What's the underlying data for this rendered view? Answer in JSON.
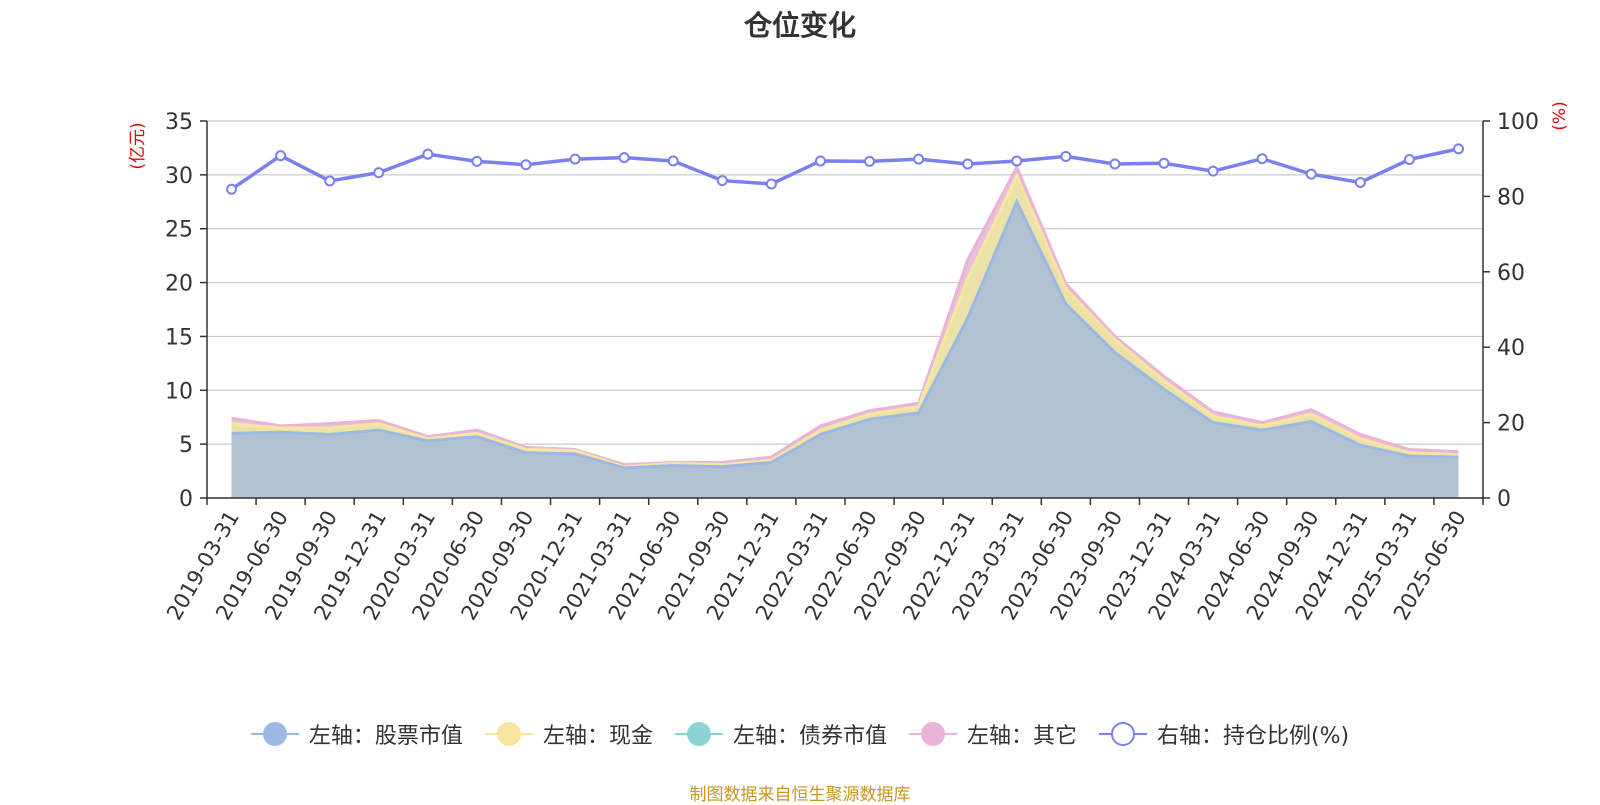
{
  "title": "仓位变化",
  "source": "制图数据来自恒生聚源数据库",
  "chart_data": {
    "type": "area",
    "title": "仓位变化",
    "categories": [
      "2019-03-31",
      "2019-06-30",
      "2019-09-30",
      "2019-12-31",
      "2020-03-31",
      "2020-06-30",
      "2020-09-30",
      "2020-12-31",
      "2021-03-31",
      "2021-06-30",
      "2021-09-30",
      "2021-12-31",
      "2022-03-31",
      "2022-06-30",
      "2022-09-30",
      "2022-12-31",
      "2023-03-31",
      "2023-06-30",
      "2023-09-30",
      "2023-12-31",
      "2024-03-31",
      "2024-06-30",
      "2024-09-30",
      "2024-12-31",
      "2025-03-31",
      "2025-06-30"
    ],
    "left_axis": {
      "label": "(亿元)",
      "min": 0,
      "max": 35,
      "ticks": [
        0,
        5,
        10,
        15,
        20,
        25,
        30,
        35
      ],
      "color": "#e00000"
    },
    "right_axis": {
      "label": "(%)",
      "min": 0,
      "max": 100,
      "ticks": [
        0,
        20,
        40,
        60,
        80,
        100
      ],
      "color": "#e00000"
    },
    "grid": true,
    "legend_position": "bottom",
    "series": [
      {
        "name": "左轴：股票市值",
        "axis": "left",
        "stacked": true,
        "color": "#9db8e2",
        "values": [
          6.0,
          6.1,
          5.9,
          6.3,
          5.3,
          5.7,
          4.2,
          4.1,
          2.8,
          3.0,
          2.9,
          3.3,
          5.9,
          7.3,
          7.9,
          16.7,
          27.5,
          18.0,
          13.5,
          10.1,
          7.0,
          6.3,
          7.1,
          4.9,
          3.9,
          3.8
        ]
      },
      {
        "name": "左轴：现金",
        "axis": "left",
        "stacked": true,
        "color": "#f8e5a0",
        "values": [
          0.9,
          0.4,
          0.6,
          0.6,
          0.2,
          0.3,
          0.3,
          0.3,
          0.1,
          0.2,
          0.2,
          0.2,
          0.4,
          0.5,
          0.6,
          3.7,
          2.4,
          1.4,
          1.2,
          0.8,
          0.6,
          0.4,
          0.7,
          0.6,
          0.3,
          0.2
        ]
      },
      {
        "name": "左轴：债券市值",
        "axis": "left",
        "stacked": true,
        "color": "#8ed3d4",
        "values": [
          0,
          0,
          0,
          0,
          0,
          0,
          0,
          0,
          0,
          0,
          0,
          0,
          0,
          0,
          0,
          0,
          0,
          0,
          0,
          0,
          0,
          0,
          0,
          0,
          0,
          0
        ]
      },
      {
        "name": "左轴：其它",
        "axis": "left",
        "stacked": true,
        "color": "#e8b4d8",
        "values": [
          0.5,
          0.2,
          0.4,
          0.3,
          0.2,
          0.3,
          0.2,
          0.1,
          0.2,
          0.1,
          0.2,
          0.3,
          0.4,
          0.3,
          0.3,
          1.7,
          0.8,
          0.5,
          0.3,
          0.4,
          0.4,
          0.3,
          0.4,
          0.4,
          0.3,
          0.3
        ]
      },
      {
        "name": "右轴：持仓比例(%)",
        "axis": "right",
        "stacked": false,
        "color": "#7b7ff0",
        "values": [
          81.9,
          90.8,
          84.1,
          86.3,
          91.2,
          89.3,
          88.4,
          89.9,
          90.3,
          89.4,
          84.2,
          83.3,
          89.4,
          89.3,
          89.9,
          88.6,
          89.4,
          90.6,
          88.6,
          88.8,
          86.7,
          90.0,
          85.9,
          83.7,
          89.8,
          92.6
        ]
      }
    ]
  }
}
